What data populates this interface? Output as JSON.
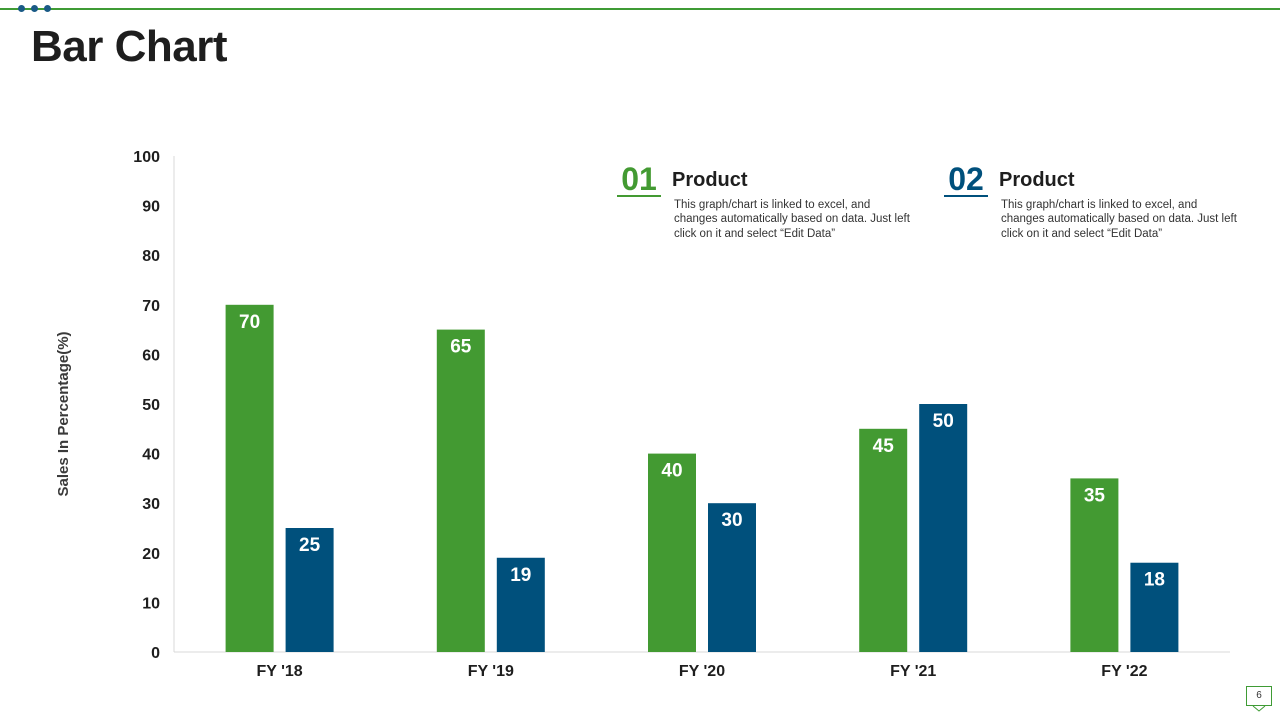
{
  "page": {
    "title": "Bar Chart",
    "page_number": "6"
  },
  "colors": {
    "product1": "#439a32",
    "product2": "#00507c",
    "accent_rule": "#3f9b35"
  },
  "legend": [
    {
      "number": "01",
      "title": "Product",
      "description": "This graph/chart is linked to excel, and changes automatically based on data. Just left click on it and select “Edit Data”",
      "color": "#439a32"
    },
    {
      "number": "02",
      "title": "Product",
      "description": "This graph/chart is linked to excel, and changes automatically based on data. Just left click on it and select “Edit Data”",
      "color": "#00507c"
    }
  ],
  "chart_data": {
    "type": "bar",
    "title": "",
    "xlabel": "",
    "ylabel": "Sales In Percentage(%)",
    "categories": [
      "FY '18",
      "FY '19",
      "FY '20",
      "FY '21",
      "FY '22"
    ],
    "series": [
      {
        "values": [
          70,
          65,
          40,
          45,
          35
        ],
        "color": "#439a32"
      },
      {
        "values": [
          25,
          19,
          30,
          50,
          18
        ],
        "color": "#00507c"
      }
    ],
    "ylim": [
      0,
      100
    ],
    "yticks": [
      0,
      10,
      20,
      30,
      40,
      50,
      60,
      70,
      80,
      90,
      100
    ],
    "grid": false,
    "data_labels": true,
    "legend_position": "top-right"
  }
}
